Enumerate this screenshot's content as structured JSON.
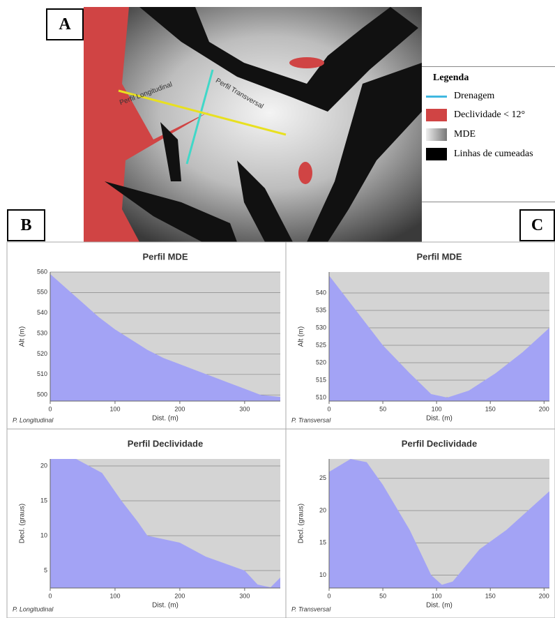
{
  "panels": {
    "a": "A",
    "b": "B",
    "c": "C"
  },
  "map": {
    "labels": [
      "Perfil Transversal",
      "Perfil Longitudinal"
    ]
  },
  "legend": {
    "title": "Legenda",
    "items": [
      "Drenagem",
      "Declividade < 12°",
      "MDE",
      "Linhas de cumeadas"
    ]
  },
  "chart_data": [
    {
      "type": "area",
      "title": "Perfil MDE",
      "xlabel": "Dist. (m)",
      "ylabel": "Alt (m)",
      "note": "P. Longitudinal",
      "x": [
        0,
        25,
        50,
        75,
        100,
        125,
        150,
        175,
        200,
        225,
        250,
        275,
        300,
        325,
        355
      ],
      "series": [
        {
          "color": "#a3a3f5",
          "values": [
            559,
            552,
            545,
            538,
            532,
            527,
            522,
            518,
            515,
            512,
            509,
            506,
            503,
            500,
            499
          ]
        }
      ],
      "xlim": [
        0,
        355
      ],
      "ylim": [
        497,
        560
      ],
      "xticks": [
        0,
        100,
        200,
        300
      ],
      "yticks": [
        500,
        510,
        520,
        530,
        540,
        550,
        560
      ],
      "grid": true
    },
    {
      "type": "area",
      "title": "Perfil MDE",
      "xlabel": "Dist. (m)",
      "ylabel": "Alt (m)",
      "note": "P. Transversal",
      "x": [
        0,
        25,
        50,
        75,
        95,
        110,
        130,
        155,
        180,
        205
      ],
      "series": [
        {
          "color": "#a3a3f5",
          "values": [
            545,
            535,
            525,
            517,
            511,
            510,
            512,
            517,
            523,
            530
          ]
        }
      ],
      "xlim": [
        0,
        205
      ],
      "ylim": [
        509,
        546
      ],
      "xticks": [
        0,
        50,
        100,
        150,
        200
      ],
      "yticks": [
        510,
        515,
        520,
        525,
        530,
        535,
        540
      ],
      "grid": true
    },
    {
      "type": "area",
      "title": "Perfil Declividade",
      "xlabel": "Dist. (m)",
      "ylabel": "Decl. (graus)",
      "note": "P. Longitudinal",
      "x": [
        0,
        40,
        80,
        110,
        135,
        150,
        200,
        240,
        270,
        300,
        320,
        340,
        355
      ],
      "series": [
        {
          "color": "#a3a3f5",
          "values": [
            21,
            21,
            19,
            15,
            12,
            10,
            9,
            7,
            6,
            5,
            3,
            2.6,
            4
          ]
        }
      ],
      "xlim": [
        0,
        355
      ],
      "ylim": [
        2.5,
        21
      ],
      "xticks": [
        0,
        100,
        200,
        300
      ],
      "yticks": [
        5,
        10,
        15,
        20
      ],
      "grid": true
    },
    {
      "type": "area",
      "title": "Perfil Declividade",
      "xlabel": "Dist. (m)",
      "ylabel": "Decl. (graus)",
      "note": "P. Transversal",
      "x": [
        0,
        20,
        35,
        50,
        75,
        95,
        105,
        115,
        140,
        165,
        185,
        205
      ],
      "series": [
        {
          "color": "#a3a3f5",
          "values": [
            26,
            28,
            27.5,
            24,
            17,
            10,
            8.5,
            9,
            14,
            17,
            20,
            23
          ]
        }
      ],
      "xlim": [
        0,
        205
      ],
      "ylim": [
        8,
        28
      ],
      "xticks": [
        0,
        50,
        100,
        150,
        200
      ],
      "yticks": [
        10,
        15,
        20,
        25
      ],
      "grid": true
    }
  ]
}
